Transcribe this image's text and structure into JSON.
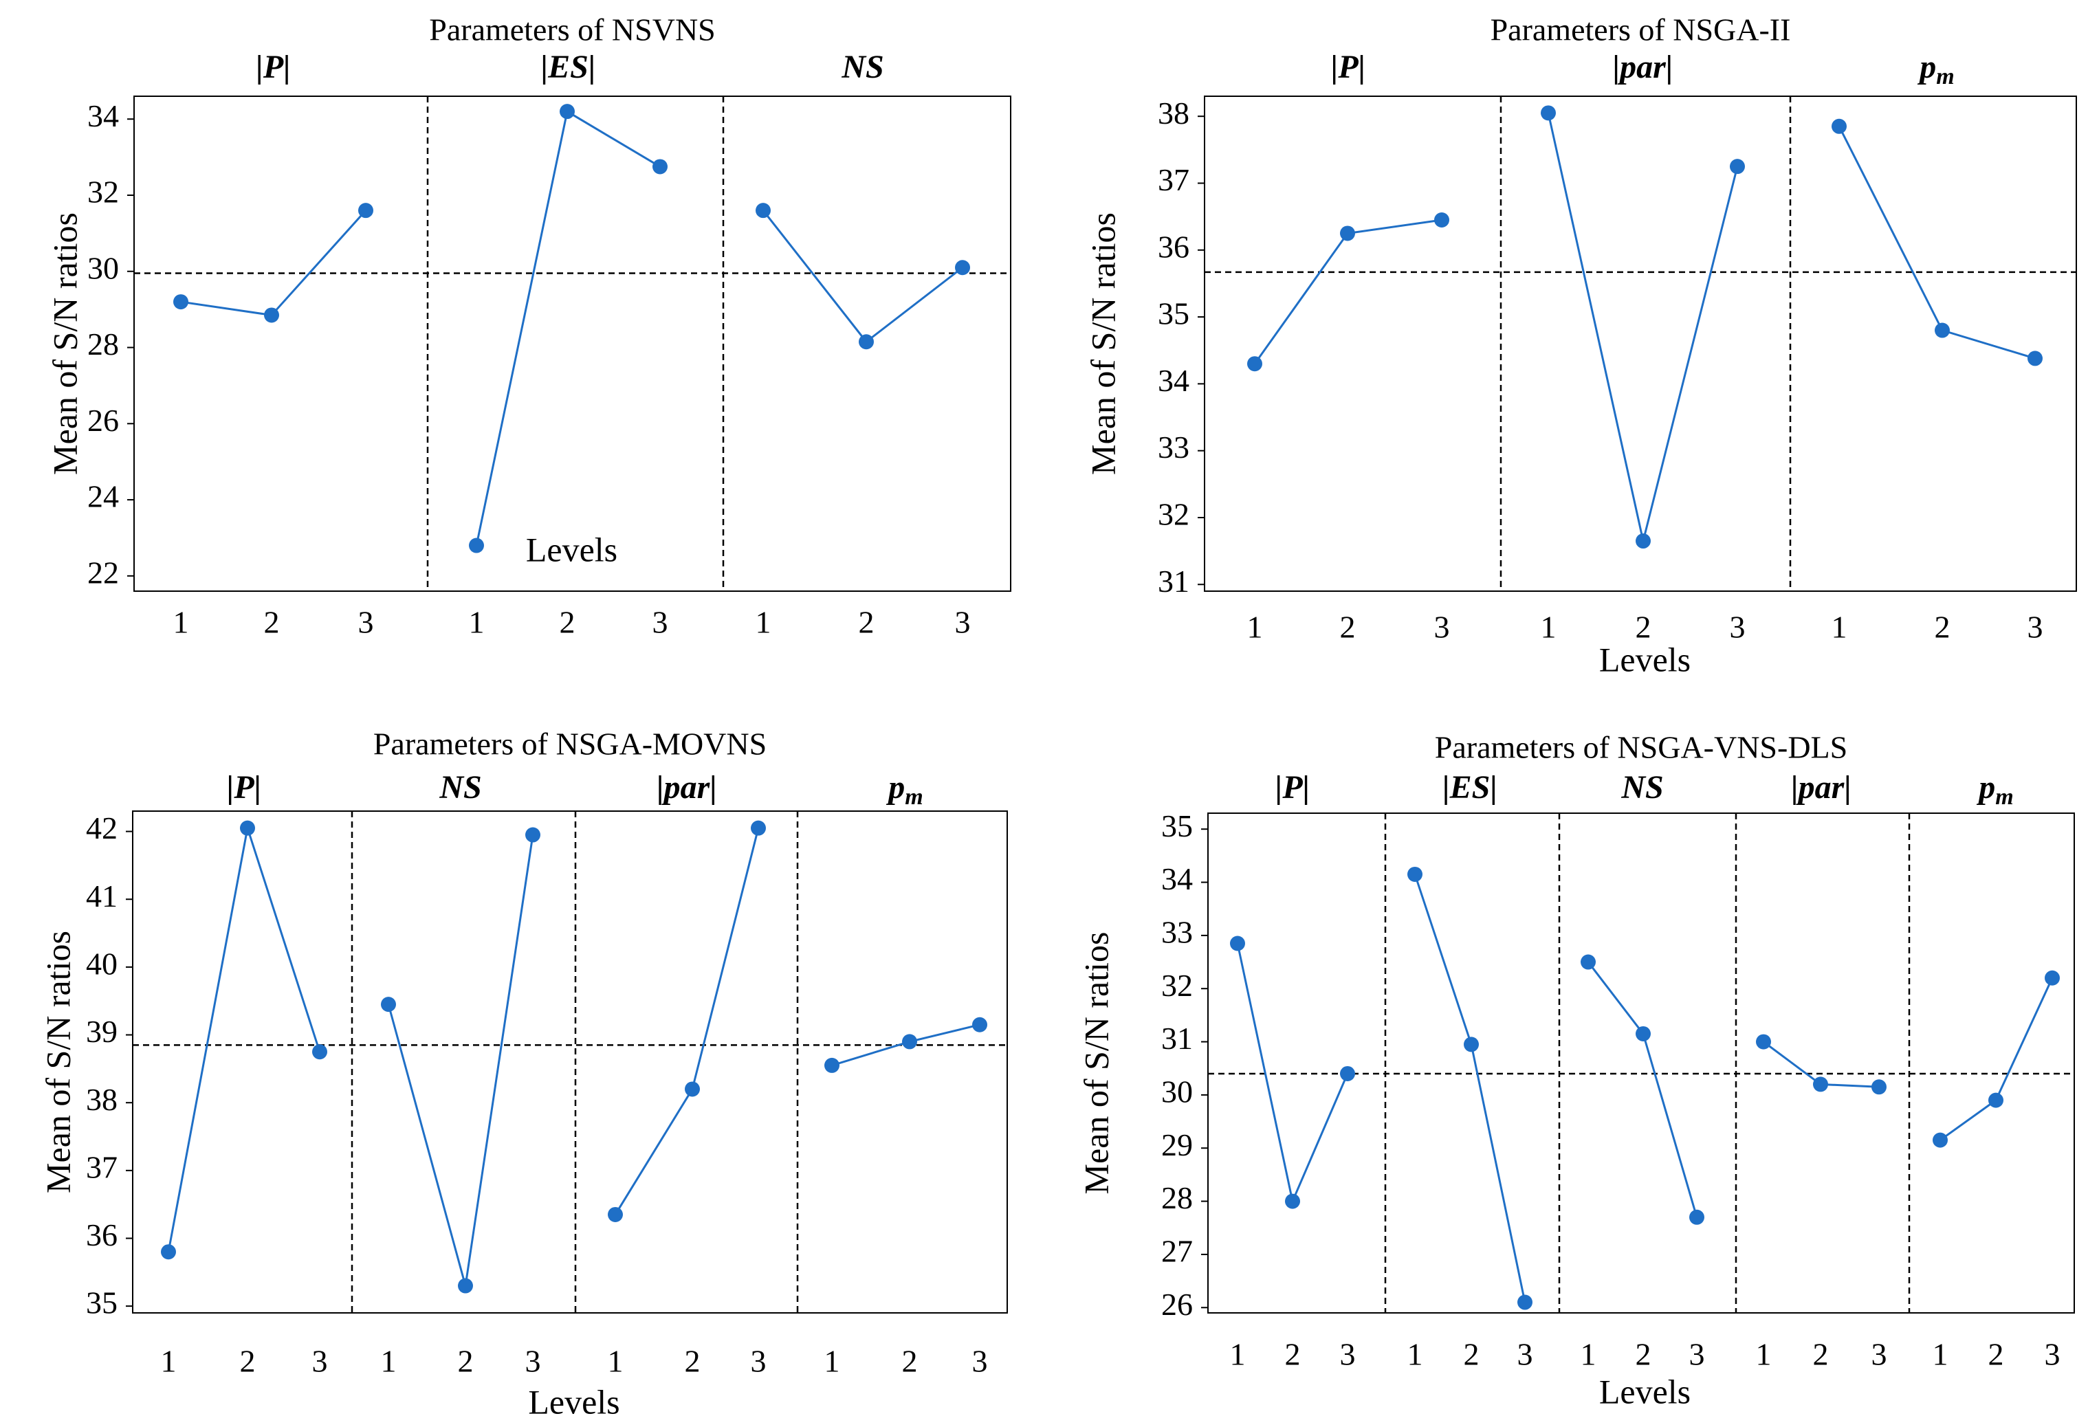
{
  "style": {
    "line_color": "#1f6fc6",
    "marker_color": "#1f6fc6",
    "reference_line_color": "#000000"
  },
  "chart_data": [
    {
      "type": "line",
      "title": "Parameters of NSVNS",
      "xlabel": "Levels",
      "ylabel": "Mean of S/N ratios",
      "ylim": [
        21.6,
        34.6
      ],
      "yticks": [
        "22",
        "24",
        "26",
        "28",
        "30",
        "32",
        "34"
      ],
      "mean": 29.95,
      "panels": [
        {
          "label": "|P|",
          "levels": [
            "1",
            "2",
            "3"
          ],
          "values": [
            29.2,
            28.85,
            31.6
          ]
        },
        {
          "label": "|ES|",
          "levels": [
            "1",
            "2",
            "3"
          ],
          "values": [
            22.8,
            34.2,
            32.75
          ]
        },
        {
          "label": "NS",
          "levels": [
            "1",
            "2",
            "3"
          ],
          "values": [
            31.6,
            28.15,
            30.1
          ]
        }
      ]
    },
    {
      "type": "line",
      "title": "Parameters of NSGA-II",
      "xlabel": "Levels",
      "ylabel": "Mean of S/N ratios",
      "ylim": [
        30.9,
        38.3
      ],
      "yticks": [
        "31",
        "32",
        "33",
        "34",
        "35",
        "36",
        "37",
        "38"
      ],
      "mean": 35.67,
      "panels": [
        {
          "label": "|P|",
          "levels": [
            "1",
            "2",
            "3"
          ],
          "values": [
            34.3,
            36.25,
            36.45
          ]
        },
        {
          "label": "|par|",
          "levels": [
            "1",
            "2",
            "3"
          ],
          "values": [
            38.05,
            31.65,
            37.25
          ]
        },
        {
          "label": "p_m",
          "label_main": "p",
          "label_sub": "m",
          "levels": [
            "1",
            "2",
            "3"
          ],
          "values": [
            37.85,
            34.8,
            34.38
          ]
        }
      ]
    },
    {
      "type": "line",
      "title": "Parameters of NSGA-MOVNS",
      "xlabel": "Levels",
      "ylabel": "Mean of S/N ratios",
      "ylim": [
        34.9,
        42.3
      ],
      "yticks": [
        "35",
        "36",
        "37",
        "38",
        "39",
        "40",
        "41",
        "42"
      ],
      "mean": 38.85,
      "panels": [
        {
          "label": "|P|",
          "levels": [
            "1",
            "2",
            "3"
          ],
          "values": [
            35.8,
            42.05,
            38.75
          ]
        },
        {
          "label": "NS",
          "levels": [
            "1",
            "2",
            "3"
          ],
          "values": [
            39.45,
            35.3,
            41.95
          ]
        },
        {
          "label": "|par|",
          "levels": [
            "1",
            "2",
            "3"
          ],
          "values": [
            36.35,
            38.2,
            42.05
          ]
        },
        {
          "label": "p_m",
          "label_main": "p",
          "label_sub": "m",
          "levels": [
            "1",
            "2",
            "3"
          ],
          "values": [
            38.55,
            38.9,
            39.15
          ]
        }
      ]
    },
    {
      "type": "line",
      "title": "Parameters of NSGA-VNS-DLS",
      "xlabel": "Levels",
      "ylabel": "Mean of S/N ratios",
      "ylim": [
        25.9,
        35.3
      ],
      "yticks": [
        "26",
        "27",
        "28",
        "29",
        "30",
        "31",
        "32",
        "33",
        "34",
        "35"
      ],
      "mean": 30.4,
      "panels": [
        {
          "label": "|P|",
          "levels": [
            "1",
            "2",
            "3"
          ],
          "values": [
            32.85,
            28.0,
            30.4
          ]
        },
        {
          "label": "|ES|",
          "levels": [
            "1",
            "2",
            "3"
          ],
          "values": [
            34.15,
            30.95,
            26.1
          ]
        },
        {
          "label": "NS",
          "levels": [
            "1",
            "2",
            "3"
          ],
          "values": [
            32.5,
            31.15,
            27.7
          ]
        },
        {
          "label": "|par|",
          "levels": [
            "1",
            "2",
            "3"
          ],
          "values": [
            31.0,
            30.2,
            30.15
          ]
        },
        {
          "label": "p_m",
          "label_main": "p",
          "label_sub": "m",
          "levels": [
            "1",
            "2",
            "3"
          ],
          "values": [
            29.15,
            29.9,
            32.2
          ]
        }
      ]
    }
  ]
}
